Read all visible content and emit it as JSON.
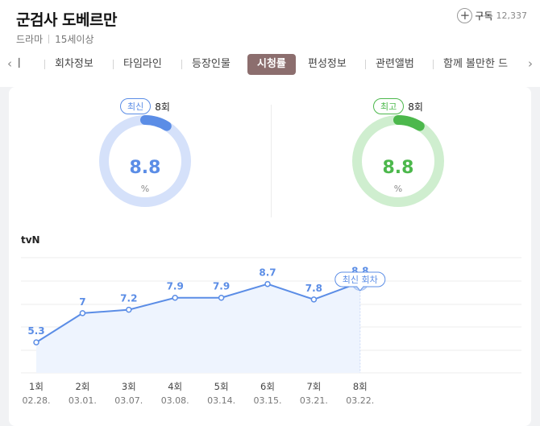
{
  "program": {
    "title": "군검사 도베르만",
    "genre": "드라마",
    "rating": "15세이상",
    "subscribe_label": "구독",
    "subscribe_count": "12,337"
  },
  "tabs": [
    {
      "label": "기"
    },
    {
      "label": "회차정보"
    },
    {
      "label": "타임라인"
    },
    {
      "label": "등장인물"
    },
    {
      "label": "시청률",
      "active": true
    },
    {
      "label": "편성정보"
    },
    {
      "label": "관련앨범"
    },
    {
      "label": "함께 볼만한 드"
    }
  ],
  "gauges": {
    "latest": {
      "badge": "최신",
      "episode": "8회",
      "value": "8.8",
      "unit": "%",
      "color": "#5b8de6",
      "track": "#d5e1fa",
      "fraction": 0.088
    },
    "highest": {
      "badge": "최고",
      "episode": "8회",
      "value": "8.8",
      "unit": "%",
      "color": "#4cb84c",
      "track": "#cfeecf",
      "fraction": 0.088
    }
  },
  "channel": "tvN",
  "chart_data": {
    "type": "line",
    "x": [
      "1회",
      "2회",
      "3회",
      "4회",
      "5회",
      "6회",
      "7회",
      "8회"
    ],
    "dates": [
      "02.28.",
      "03.01.",
      "03.07.",
      "03.08.",
      "03.14.",
      "03.15.",
      "03.21.",
      "03.22."
    ],
    "values": [
      5.3,
      7.0,
      7.2,
      7.9,
      7.9,
      8.7,
      7.8,
      8.8
    ],
    "tooltip": "최신 회차",
    "line_color": "#5b8de6",
    "area_color": "#eef4fe",
    "grid": true
  }
}
